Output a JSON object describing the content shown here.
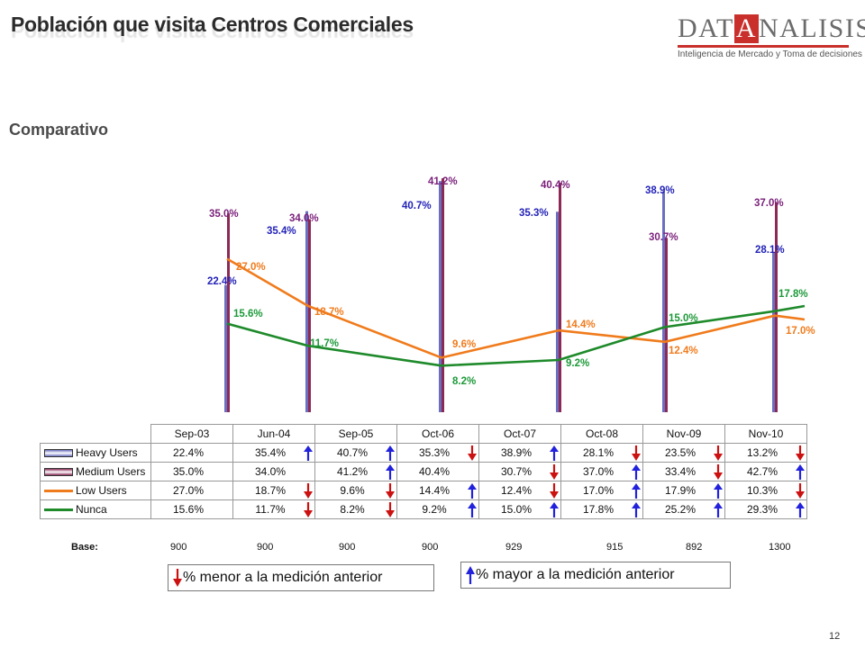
{
  "header": {
    "title": "Población que visita Centros Comerciales",
    "logo_part1": "DAT",
    "logo_box": "A",
    "logo_part2": "NALISIS",
    "logo_tagline": "Inteligencia de Mercado y Toma de decisiones"
  },
  "section_title": "Comparativo",
  "chart_data": {
    "type": "line",
    "categories": [
      "Sep-03",
      "Jun-04",
      "Sep-05",
      "Oct-06",
      "Oct-07",
      "Oct-08",
      "Nov-09",
      "Nov-10"
    ],
    "series": [
      {
        "name": "Heavy Users",
        "style": "bar",
        "color": "#6a6fc0",
        "values": [
          22.4,
          35.4,
          40.7,
          35.3,
          38.9,
          28.1,
          23.5,
          13.2
        ],
        "labels": [
          "22.4%",
          "35.4%",
          "40.7%",
          "35.3%",
          "38.9%",
          "28.1%",
          "23.5%",
          "13.2%"
        ],
        "changes": [
          null,
          "up",
          "up",
          "down",
          "up",
          "down",
          "down",
          "down"
        ]
      },
      {
        "name": "Medium Users",
        "style": "bar",
        "color": "#8c2a55",
        "values": [
          35.0,
          34.0,
          41.2,
          40.4,
          30.7,
          37.0,
          33.4,
          42.7
        ],
        "labels": [
          "35.0%",
          "34.0%",
          "41.2%",
          "40.4%",
          "30.7%",
          "37.0%",
          "33.4%",
          "42.7%"
        ],
        "changes": [
          null,
          null,
          "up",
          null,
          "down",
          "up",
          "down",
          "up"
        ]
      },
      {
        "name": "Low Users",
        "style": "line",
        "color": "#f07b1c",
        "values": [
          27.0,
          18.7,
          9.6,
          14.4,
          12.4,
          17.0,
          17.9,
          10.3
        ],
        "labels": [
          "27.0%",
          "18.7%",
          "9.6%",
          "14.4%",
          "12.4%",
          "17.0%",
          "17.9%",
          "10.3%"
        ],
        "changes": [
          null,
          "down",
          "down",
          "up",
          "down",
          "up",
          "up",
          "down"
        ]
      },
      {
        "name": "Nunca",
        "style": "line",
        "color": "#1e8a2a",
        "values": [
          15.6,
          11.7,
          8.2,
          9.2,
          15.0,
          17.8,
          25.2,
          29.3
        ],
        "labels": [
          "15.6%",
          "11.7%",
          "8.2%",
          "9.2%",
          "15.0%",
          "17.8%",
          "25.2%",
          "29.3%"
        ],
        "changes": [
          null,
          "down",
          "down",
          "up",
          "up",
          "up",
          "up",
          "up"
        ]
      }
    ],
    "chart_point_labels": {
      "Heavy Users": [
        "22.4%",
        "35.4%",
        "40.7%",
        "35.3%",
        "38.9%",
        "28.1%"
      ],
      "Medium Users": [
        "35.0%",
        "34.0%",
        "41.2%",
        "40.4%",
        "30.7%",
        "37.0%"
      ],
      "Low Users": [
        "27.0%",
        "18.7%",
        "9.6%",
        "14.4%",
        "12.4%",
        "17.0%"
      ],
      "Nunca": [
        "15.6%",
        "11.7%",
        "8.2%",
        "9.2%",
        "15.0%",
        "17.8%"
      ]
    },
    "ylim": [
      0,
      42
    ],
    "grid": false,
    "legend": "table-left"
  },
  "base": {
    "label": "Base:",
    "values": [
      "900",
      "900",
      "900",
      "900",
      "929",
      "915",
      "892",
      "1300"
    ]
  },
  "legend_notes": {
    "down": "% menor a la medición anterior",
    "up": "% mayor a la medición anterior"
  },
  "colors": {
    "up_arrow": "#2222dd",
    "down_arrow": "#cc1111"
  },
  "page_number": "12"
}
